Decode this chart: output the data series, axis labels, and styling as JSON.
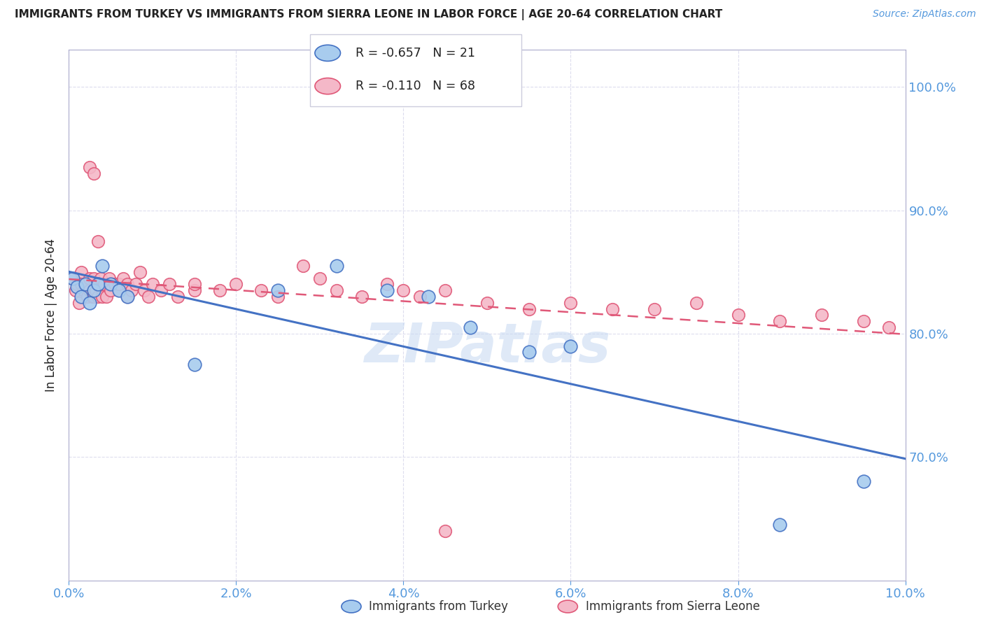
{
  "title": "IMMIGRANTS FROM TURKEY VS IMMIGRANTS FROM SIERRA LEONE IN LABOR FORCE | AGE 20-64 CORRELATION CHART",
  "source": "Source: ZipAtlas.com",
  "ylabel": "In Labor Force | Age 20-64",
  "xlim": [
    0.0,
    10.0
  ],
  "ylim": [
    60.0,
    103.0
  ],
  "yticks": [
    70.0,
    80.0,
    90.0,
    100.0
  ],
  "xticks": [
    0.0,
    2.0,
    4.0,
    6.0,
    8.0,
    10.0
  ],
  "turkey_color": "#A8CCEE",
  "turkey_color_dark": "#4472C4",
  "sierra_leone_color": "#F4B8C8",
  "sierra_leone_color_dark": "#E05878",
  "turkey_R": -0.657,
  "turkey_N": 21,
  "sierra_leone_R": -0.11,
  "sierra_leone_N": 68,
  "turkey_x": [
    0.05,
    0.1,
    0.15,
    0.2,
    0.25,
    0.3,
    0.35,
    0.4,
    0.5,
    0.6,
    0.7,
    1.5,
    2.5,
    3.2,
    3.8,
    4.3,
    4.8,
    5.5,
    6.0,
    8.5,
    9.5
  ],
  "turkey_y": [
    84.5,
    83.8,
    83.0,
    84.0,
    82.5,
    83.5,
    84.0,
    85.5,
    84.0,
    83.5,
    83.0,
    77.5,
    83.5,
    85.5,
    83.5,
    83.0,
    80.5,
    78.5,
    79.0,
    64.5,
    68.0
  ],
  "sierra_leone_x": [
    0.05,
    0.08,
    0.1,
    0.12,
    0.15,
    0.15,
    0.18,
    0.2,
    0.22,
    0.25,
    0.25,
    0.28,
    0.3,
    0.3,
    0.32,
    0.35,
    0.35,
    0.38,
    0.4,
    0.4,
    0.42,
    0.45,
    0.48,
    0.5,
    0.55,
    0.6,
    0.6,
    0.65,
    0.7,
    0.7,
    0.75,
    0.8,
    0.85,
    0.9,
    0.95,
    1.0,
    1.1,
    1.2,
    1.3,
    1.5,
    1.5,
    1.8,
    2.0,
    2.3,
    2.5,
    2.8,
    3.0,
    3.2,
    3.5,
    3.8,
    4.0,
    4.2,
    4.5,
    5.0,
    5.5,
    6.0,
    6.5,
    7.0,
    7.5,
    8.0,
    8.5,
    9.0,
    9.5,
    9.8,
    4.5,
    0.25,
    0.3,
    0.35
  ],
  "sierra_leone_y": [
    84.5,
    83.5,
    84.0,
    82.5,
    85.0,
    84.0,
    83.5,
    84.0,
    83.0,
    84.5,
    83.5,
    83.0,
    84.5,
    83.0,
    83.5,
    84.0,
    83.0,
    84.5,
    83.5,
    83.0,
    84.0,
    83.0,
    84.5,
    83.5,
    84.0,
    83.5,
    84.0,
    84.5,
    83.0,
    84.0,
    83.5,
    84.0,
    85.0,
    83.5,
    83.0,
    84.0,
    83.5,
    84.0,
    83.0,
    83.5,
    84.0,
    83.5,
    84.0,
    83.5,
    83.0,
    85.5,
    84.5,
    83.5,
    83.0,
    84.0,
    83.5,
    83.0,
    83.5,
    82.5,
    82.0,
    82.5,
    82.0,
    82.0,
    82.5,
    81.5,
    81.0,
    81.5,
    81.0,
    80.5,
    64.0,
    93.5,
    93.0,
    87.5
  ],
  "watermark": "ZIPatlas",
  "background_color": "#ffffff",
  "grid_color": "#ddddee",
  "axis_color": "#aaaacc",
  "label_color": "#5599DD",
  "title_color": "#222222"
}
